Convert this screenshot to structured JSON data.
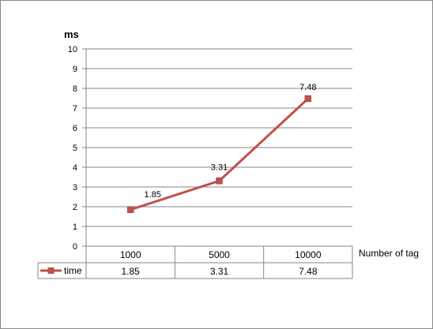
{
  "chart_data": {
    "type": "line",
    "categories": [
      "1000",
      "5000",
      "10000"
    ],
    "series": [
      {
        "name": "time",
        "values": [
          1.85,
          3.31,
          7.48
        ],
        "color": "#c0504d"
      }
    ],
    "data_labels": [
      "1.85",
      "3.31",
      "7.48"
    ],
    "ylabel": "ms",
    "xlabel": "Number of tag",
    "ylim": [
      0,
      10
    ],
    "y_ticks": [
      "0",
      "1",
      "2",
      "3",
      "4",
      "5",
      "6",
      "7",
      "8",
      "9",
      "10"
    ],
    "grid": true,
    "legend": "data-table",
    "marker": "square",
    "table_values": [
      "1.85",
      "3.31",
      "7.48"
    ]
  }
}
